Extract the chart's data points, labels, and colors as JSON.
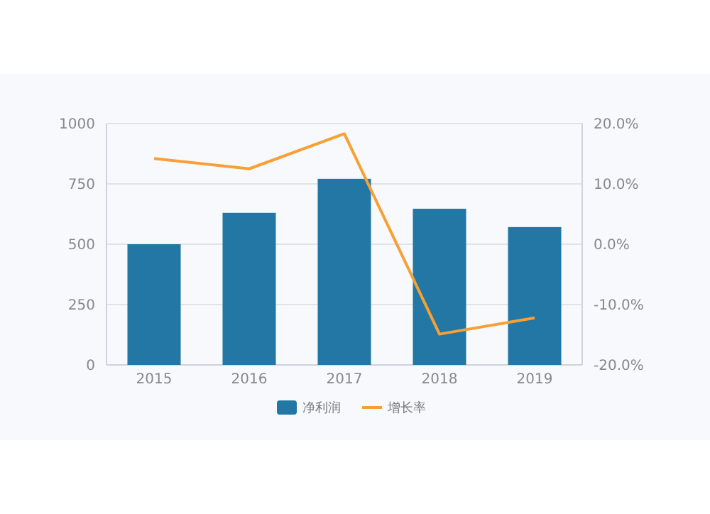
{
  "chart_data": {
    "type": "bar",
    "categories": [
      "2015",
      "2016",
      "2017",
      "2018",
      "2019"
    ],
    "series": [
      {
        "name": "净利润",
        "color": "#2377a4",
        "values": [
          500,
          630,
          771,
          647,
          571
        ]
      },
      {
        "name": "增长率",
        "type": "line",
        "axis": "y2",
        "color": "#f7a035",
        "values": [
          14.2,
          12.5,
          18.3,
          -14.9,
          -12.2
        ]
      }
    ],
    "ylim": [
      0,
      1000
    ],
    "yticks": [
      0,
      250,
      500,
      750,
      1000
    ],
    "y2lim": [
      -20,
      20
    ],
    "y2ticks": [
      {
        "value": -20,
        "label": "-20.0%"
      },
      {
        "value": -10,
        "label": "-10.0%"
      },
      {
        "value": 0,
        "label": "0.0%"
      },
      {
        "value": 10,
        "label": "10.0%"
      },
      {
        "value": 20,
        "label": "20.0%"
      }
    ],
    "grid": "y",
    "legend": "bottom",
    "marker": "none",
    "line_style": "solid"
  }
}
